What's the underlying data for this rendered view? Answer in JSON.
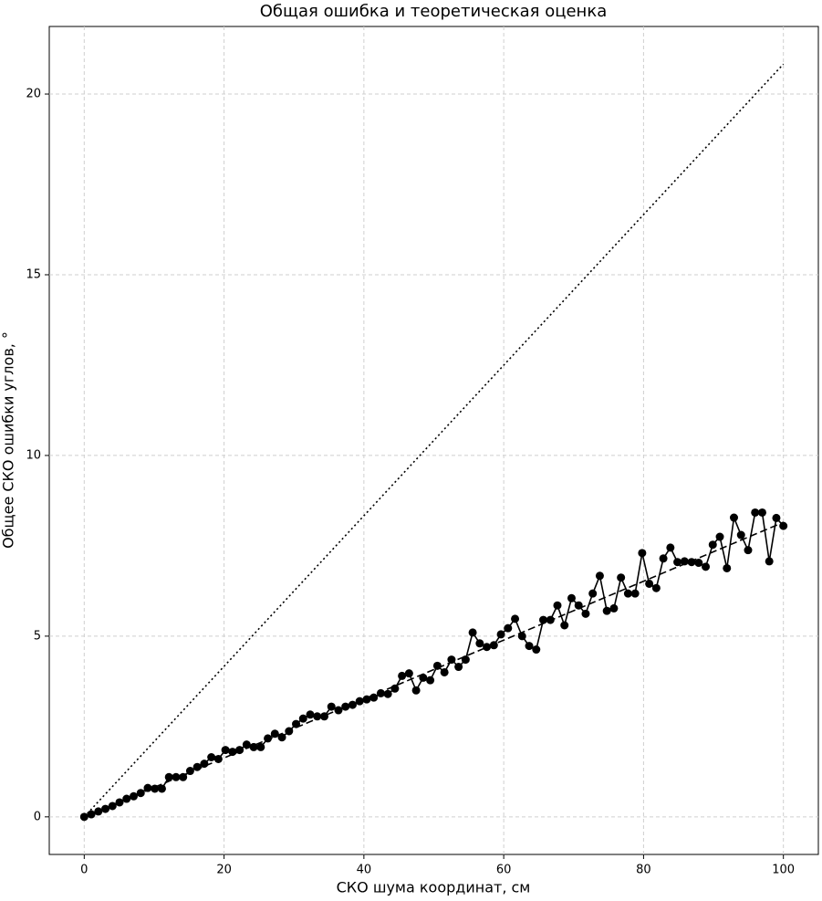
{
  "chart_data": {
    "type": "line",
    "title": "Общая ошибка и теоретическая оценка",
    "xlabel": "СКО шума координат, см",
    "ylabel": "Общее СКО ошибки углов, °",
    "xlim": [
      -5,
      105
    ],
    "ylim": [
      -1.04,
      21.87
    ],
    "xticks": [
      0,
      20,
      40,
      60,
      80,
      100
    ],
    "yticks": [
      0,
      5,
      10,
      15,
      20
    ],
    "grid": true,
    "series": [
      {
        "color": "#000000",
        "linestyle": "solid",
        "marker": "circle",
        "x": [
          0,
          1.01,
          2.02,
          3.03,
          4.04,
          5.05,
          6.06,
          7.07,
          8.08,
          9.09,
          10.1,
          11.11,
          12.12,
          13.13,
          14.14,
          15.15,
          16.16,
          17.17,
          18.18,
          19.19,
          20.2,
          21.21,
          22.22,
          23.23,
          24.24,
          25.25,
          26.26,
          27.27,
          28.28,
          29.29,
          30.3,
          31.31,
          32.32,
          33.33,
          34.34,
          35.35,
          36.36,
          37.37,
          38.38,
          39.39,
          40.4,
          41.41,
          42.42,
          43.43,
          44.44,
          45.45,
          46.46,
          47.47,
          48.48,
          49.49,
          50.51,
          51.52,
          52.53,
          53.54,
          54.55,
          55.56,
          56.57,
          57.58,
          58.59,
          59.6,
          60.61,
          61.62,
          62.63,
          63.64,
          64.65,
          65.66,
          66.67,
          67.68,
          68.69,
          69.7,
          70.71,
          71.72,
          72.73,
          73.74,
          74.75,
          75.76,
          76.77,
          77.78,
          78.79,
          79.8,
          80.81,
          81.82,
          82.83,
          83.84,
          84.85,
          85.86,
          86.87,
          87.88,
          88.89,
          89.9,
          90.91,
          91.92,
          92.93,
          93.94,
          94.95,
          95.96,
          96.97,
          97.98,
          98.99,
          100
        ],
        "values": [
          0,
          0.07,
          0.15,
          0.22,
          0.3,
          0.4,
          0.5,
          0.57,
          0.66,
          0.8,
          0.78,
          0.78,
          1.1,
          1.1,
          1.1,
          1.27,
          1.38,
          1.47,
          1.65,
          1.6,
          1.85,
          1.8,
          1.85,
          2.0,
          1.93,
          1.93,
          2.17,
          2.3,
          2.2,
          2.37,
          2.57,
          2.72,
          2.83,
          2.78,
          2.78,
          3.05,
          2.95,
          3.05,
          3.1,
          3.2,
          3.25,
          3.3,
          3.42,
          3.4,
          3.55,
          3.9,
          3.97,
          3.5,
          3.85,
          3.78,
          4.18,
          4.0,
          4.35,
          4.15,
          4.35,
          5.1,
          4.8,
          4.7,
          4.75,
          5.05,
          5.22,
          5.48,
          5.0,
          4.73,
          4.63,
          5.45,
          5.45,
          5.85,
          5.3,
          6.05,
          5.85,
          5.62,
          6.18,
          6.67,
          5.7,
          5.77,
          6.62,
          6.18,
          6.18,
          7.3,
          6.45,
          6.33,
          7.15,
          7.45,
          7.05,
          7.07,
          7.05,
          7.03,
          6.92,
          7.53,
          7.75,
          6.88,
          8.28,
          7.8,
          7.38,
          8.42,
          8.42,
          7.07,
          8.27,
          8.05
        ]
      },
      {
        "color": "#000000",
        "linestyle": "dashed",
        "x": [
          0,
          100
        ],
        "values": [
          0,
          8.15
        ]
      },
      {
        "color": "#000000",
        "linestyle": "dotted",
        "x": [
          0,
          100
        ],
        "values": [
          0,
          20.83
        ]
      }
    ]
  }
}
